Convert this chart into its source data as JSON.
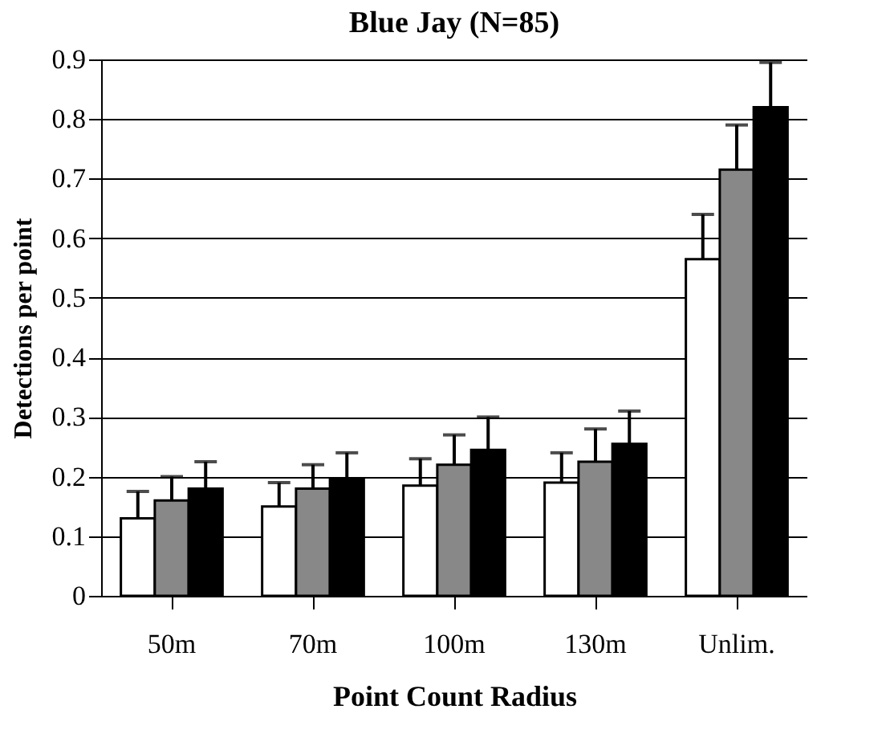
{
  "chart_data": {
    "type": "bar",
    "title": "Blue Jay (N=85)",
    "xlabel": "Point Count Radius",
    "ylabel": "Detections per point",
    "categories": [
      "50m",
      "70m",
      "100m",
      "130m",
      "Unlim."
    ],
    "series": [
      {
        "color": "#ffffff",
        "values": [
          0.13,
          0.15,
          0.185,
          0.19,
          0.565
        ],
        "errors": [
          0.045,
          0.04,
          0.045,
          0.05,
          0.075
        ]
      },
      {
        "color": "#888888",
        "values": [
          0.16,
          0.18,
          0.22,
          0.225,
          0.715
        ],
        "errors": [
          0.04,
          0.04,
          0.05,
          0.055,
          0.075
        ]
      },
      {
        "color": "#000000",
        "values": [
          0.18,
          0.195,
          0.245,
          0.255,
          0.82
        ],
        "errors": [
          0.045,
          0.045,
          0.055,
          0.055,
          0.075
        ]
      }
    ],
    "ylim": [
      0,
      0.9
    ],
    "yticks": [
      0,
      0.1,
      0.2,
      0.3,
      0.4,
      0.5,
      0.6,
      0.7,
      0.8,
      0.9
    ],
    "grid": "y"
  }
}
